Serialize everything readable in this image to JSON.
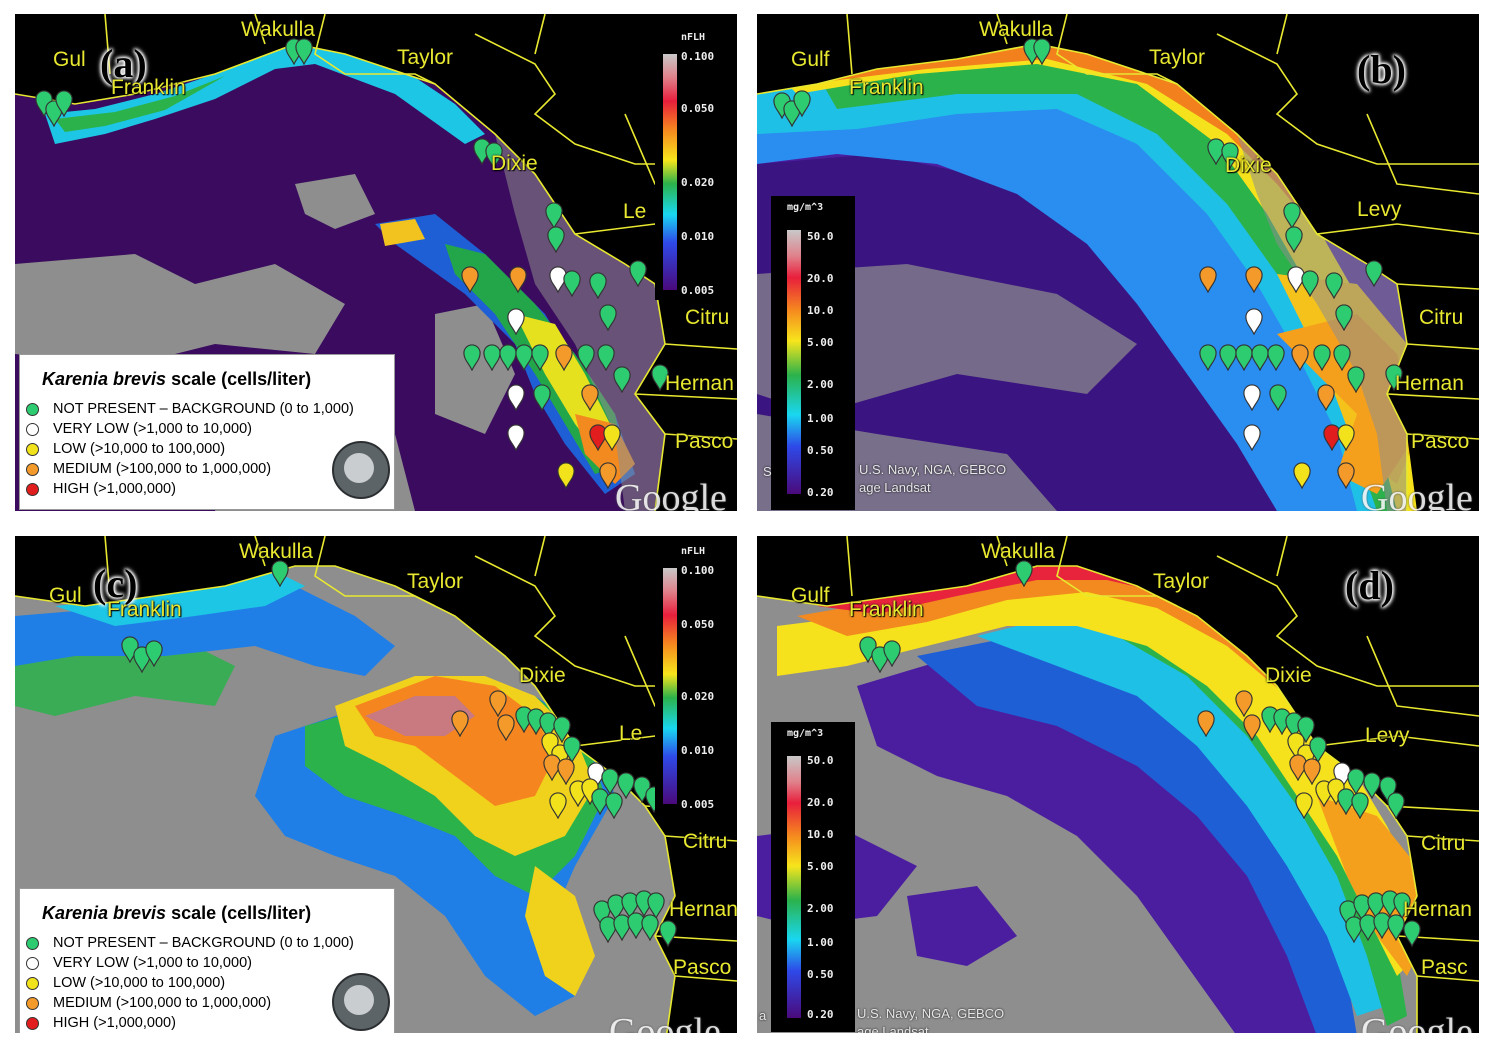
{
  "panels": {
    "a": {
      "label": "(a)",
      "product": "nflh"
    },
    "b": {
      "label": "(b)",
      "product": "chl"
    },
    "c": {
      "label": "(c)",
      "product": "nflh"
    },
    "d": {
      "label": "(d)",
      "product": "chl"
    }
  },
  "counties": {
    "gulf": "Gulf",
    "gulf_cut_a": "Gul",
    "gulf_cut_c": "Gul",
    "wakulla": "Wakulla",
    "franklin": "Franklin",
    "taylor": "Taylor",
    "dixie": "Dixie",
    "levy": "Levy",
    "levy_cut": "Le",
    "citrus_cut": "Citru",
    "hernando_cut": "Hernan",
    "pasco_cut": "Pasco",
    "pasco_cut2": "Pasc"
  },
  "nflh_scale": {
    "unit": "nFLH",
    "ticks": [
      "0.100",
      "0.050",
      "0.020",
      "0.010",
      "0.005"
    ]
  },
  "chl_scale": {
    "unit": "mg/m^3",
    "ticks": [
      "50.0",
      "20.0",
      "10.0",
      "5.00",
      "2.00",
      "1.00",
      "0.50",
      "0.20"
    ]
  },
  "legend": {
    "title": "Karenia brevis scale (cells/liter)",
    "title_italic": "Karenia brevis",
    "title_rest": " scale (cells/liter)",
    "items": [
      {
        "label": "NOT PRESENT – BACKGROUND (0 to 1,000)",
        "color": "#2ecc71"
      },
      {
        "label": "VERY LOW (>1,000 to 10,000)",
        "color": "#ffffff"
      },
      {
        "label": "LOW (>10,000 to 100,000)",
        "color": "#f2e21b"
      },
      {
        "label": "MEDIUM (>100,000 to 1,000,000)",
        "color": "#f39a2b"
      },
      {
        "label": "HIGH (>1,000,000)",
        "color": "#e11d1d"
      }
    ]
  },
  "credits": {
    "google": "Google",
    "line1": "U.S. Navy, NGA, GEBCO",
    "line2": "age Landsat",
    "line1_prefix": "S",
    "line2_prefix": "a"
  },
  "colors": {
    "land_gray": "#8e8e8e",
    "county_line": "#e8e830",
    "background": "#000000"
  }
}
